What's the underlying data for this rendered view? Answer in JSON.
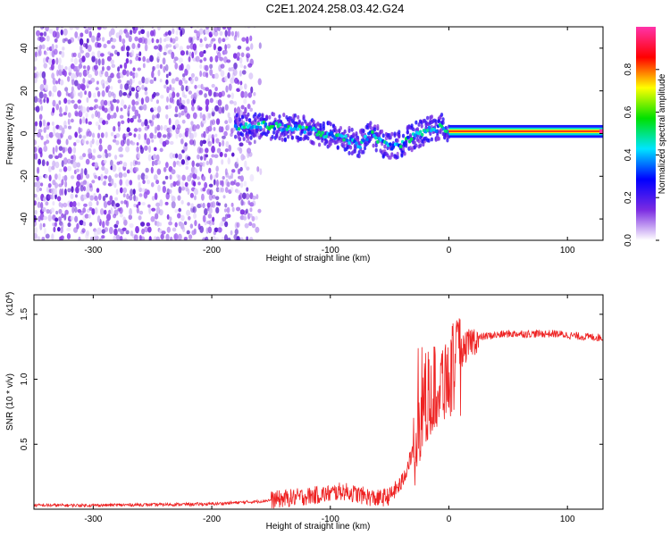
{
  "title": "C2E1.2024.258.03.42.G24",
  "chart_data": [
    {
      "type": "heatmap",
      "xlabel": "Height of straight line (km)",
      "ylabel": "Frequency (Hz)",
      "xlim": [
        -350,
        130
      ],
      "ylim": [
        -50,
        50
      ],
      "x_ticks": [
        -300,
        -200,
        -100,
        0,
        100
      ],
      "x_tick_labels": [
        "-300",
        "-200",
        "-100",
        "0",
        "100"
      ],
      "y_ticks": [
        -40,
        -20,
        0,
        20,
        40
      ],
      "y_tick_labels": [
        "-40",
        "-20",
        "0",
        "20",
        "40"
      ],
      "colorbar": {
        "label": "Normalized spectral amplitude",
        "range": [
          0,
          1
        ],
        "ticks": [
          0.0,
          0.2,
          0.4,
          0.6,
          0.8
        ],
        "tick_labels": [
          "0.0",
          "0.2",
          "0.4",
          "0.6",
          "0.8"
        ],
        "colors": [
          "#ffffff",
          "#7b2be2",
          "#0000ff",
          "#00e5ff",
          "#00e000",
          "#ffff00",
          "#ff0000",
          "#ff33aa"
        ]
      },
      "noise_region_x": [
        -350,
        -170
      ],
      "signal_track": {
        "x": [
          -180,
          -160,
          -140,
          -120,
          -100,
          -85,
          -75,
          -65,
          -55,
          -45,
          -35,
          -25,
          -15,
          -5,
          0,
          20,
          60,
          100,
          130
        ],
        "y": [
          3,
          4,
          3,
          2,
          -1,
          -3,
          -5,
          0,
          -5,
          -6,
          -3,
          0,
          2,
          3,
          1,
          1,
          1,
          1,
          1
        ]
      }
    },
    {
      "type": "line",
      "xlabel": "Height of straight line (km)",
      "ylabel": "SNR (10 * v/v)",
      "scale_note_prefix": "(x10",
      "scale_note_exp": "4",
      "scale_note_suffix": ")",
      "xlim": [
        -350,
        130
      ],
      "ylim": [
        0,
        1.65
      ],
      "x_ticks": [
        -300,
        -200,
        -100,
        0,
        100
      ],
      "x_tick_labels": [
        "-300",
        "-200",
        "-100",
        "0",
        "100"
      ],
      "y_ticks": [
        0.5,
        1.0,
        1.5
      ],
      "y_tick_labels": [
        "0.5",
        "1.0",
        "1.5"
      ],
      "series": [
        {
          "color": "#ee2222",
          "x": [
            -350,
            -300,
            -250,
            -200,
            -180,
            -160,
            -140,
            -120,
            -100,
            -90,
            -80,
            -70,
            -60,
            -50,
            -40,
            -30,
            -25,
            -20,
            -15,
            -10,
            -5,
            0,
            5,
            10,
            20,
            30,
            50,
            70,
            90,
            100,
            110,
            130
          ],
          "y": [
            0.03,
            0.03,
            0.035,
            0.04,
            0.05,
            0.06,
            0.08,
            0.1,
            0.12,
            0.14,
            0.12,
            0.1,
            0.08,
            0.1,
            0.2,
            0.45,
            0.7,
            0.85,
            0.9,
            0.95,
            1.0,
            1.05,
            1.1,
            1.2,
            1.3,
            1.33,
            1.35,
            1.35,
            1.35,
            1.34,
            1.33,
            1.32
          ]
        }
      ]
    }
  ]
}
